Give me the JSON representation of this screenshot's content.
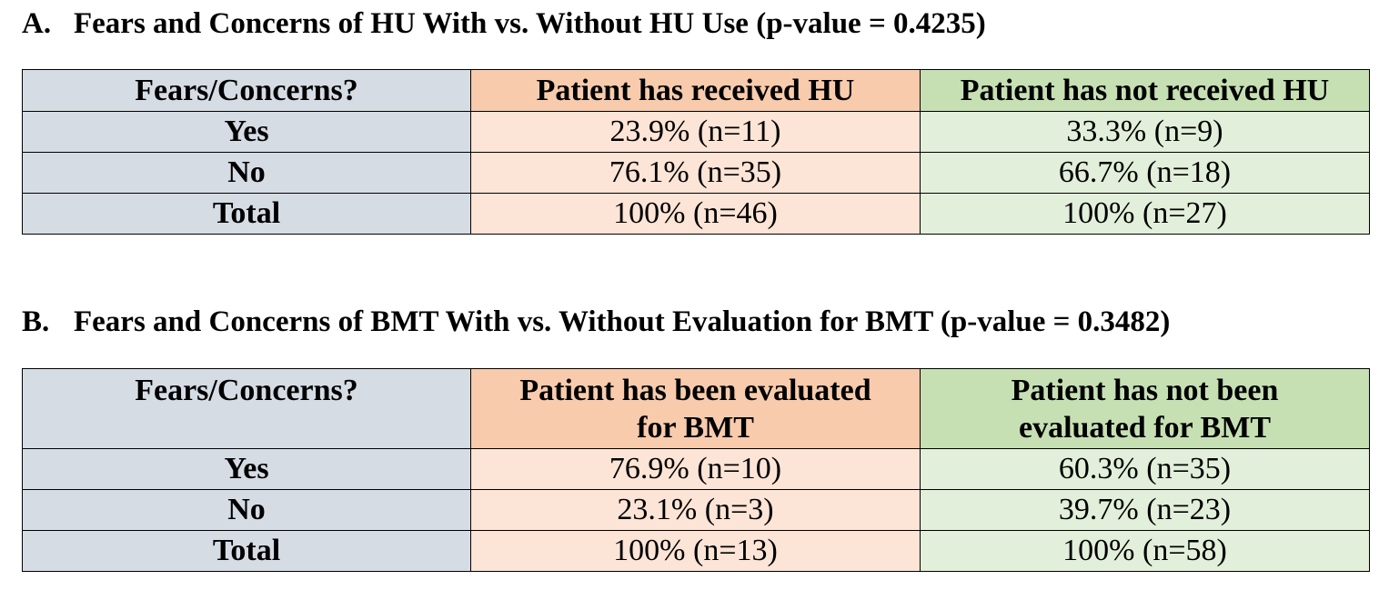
{
  "section_a": {
    "letter": "A.",
    "title": "Fears and Concerns of HU With vs. Without HU Use (p-value = 0.4235)",
    "headers": [
      "Fears/Concerns?",
      "Patient has received HU",
      "Patient has not received HU"
    ],
    "rows": [
      {
        "label": "Yes",
        "col1": "23.9% (n=11)",
        "col2": "33.3% (n=9)"
      },
      {
        "label": "No",
        "col1": "76.1% (n=35)",
        "col2": "66.7% (n=18)"
      },
      {
        "label": "Total",
        "col1": "100% (n=46)",
        "col2": "100% (n=27)"
      }
    ]
  },
  "section_b": {
    "letter": "B.",
    "title": "Fears and Concerns of BMT With vs. Without Evaluation for BMT (p-value = 0.3482)",
    "headers": [
      "Fears/Concerns?",
      "Patient has been evaluated for BMT",
      "Patient has not been evaluated for BMT"
    ],
    "header_lines": {
      "col1": [
        "Patient has been evaluated",
        "for BMT"
      ],
      "col2": [
        "Patient has not been",
        "evaluated for BMT"
      ]
    },
    "rows": [
      {
        "label": "Yes",
        "col1": "76.9% (n=10)",
        "col2": "60.3% (n=35)"
      },
      {
        "label": "No",
        "col1": "23.1% (n=3)",
        "col2": "39.7% (n=23)"
      },
      {
        "label": "Total",
        "col1": "100% (n=13)",
        "col2": "100% (n=58)"
      }
    ]
  },
  "colors": {
    "label_column": "#d6dce4",
    "orange_header": "#f8cbad",
    "orange_cell": "#fce4d6",
    "green_header": "#c6e0b4",
    "green_cell": "#e2efda"
  }
}
